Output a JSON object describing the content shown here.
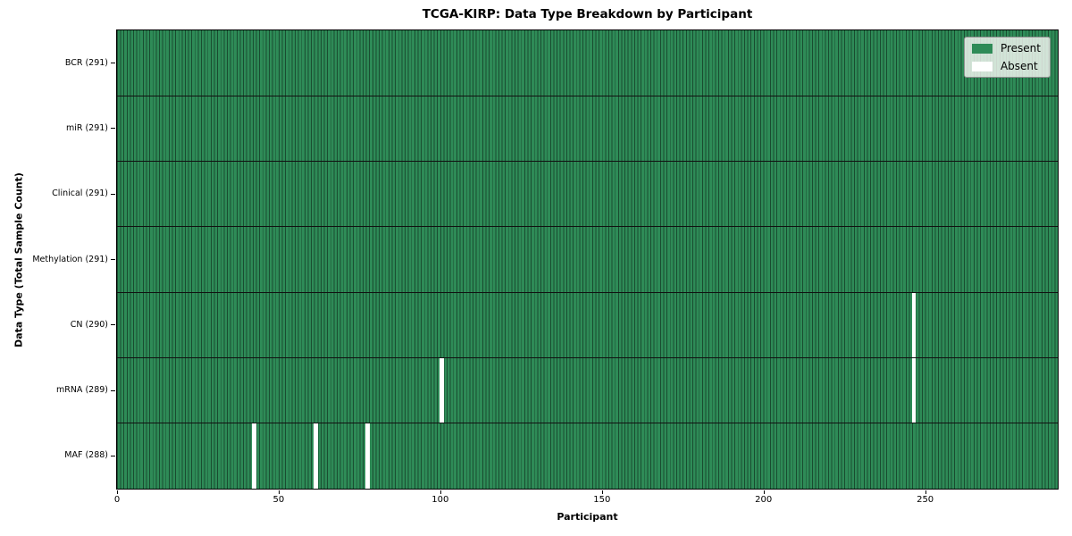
{
  "chart_data": {
    "type": "heatmap",
    "title": "TCGA-KIRP: Data Type Breakdown by Participant",
    "xlabel": "Participant",
    "ylabel": "Data Type (Total Sample Count)",
    "n_participants": 291,
    "x_ticks": [
      0,
      50,
      100,
      150,
      200,
      250
    ],
    "rows": [
      {
        "label": "BCR (291)",
        "absent_participants": []
      },
      {
        "label": "miR (291)",
        "absent_participants": []
      },
      {
        "label": "Clinical (291)",
        "absent_participants": []
      },
      {
        "label": "Methylation (291)",
        "absent_participants": []
      },
      {
        "label": "CN (290)",
        "absent_participants": [
          246
        ]
      },
      {
        "label": "mRNA (289)",
        "absent_participants": [
          100,
          246
        ]
      },
      {
        "label": "MAF (288)",
        "absent_participants": [
          42,
          61,
          77
        ]
      }
    ],
    "legend": [
      {
        "label": "Present",
        "color": "#2e8b57"
      },
      {
        "label": "Absent",
        "color": "#ffffff"
      }
    ],
    "colors": {
      "present": "#2e8b57",
      "absent": "#ffffff",
      "cell_edge": "rgba(0,0,0,0.45)",
      "row_separator": "#111111",
      "plot_border": "#000000"
    },
    "legend_position": "upper right",
    "grid": false
  }
}
